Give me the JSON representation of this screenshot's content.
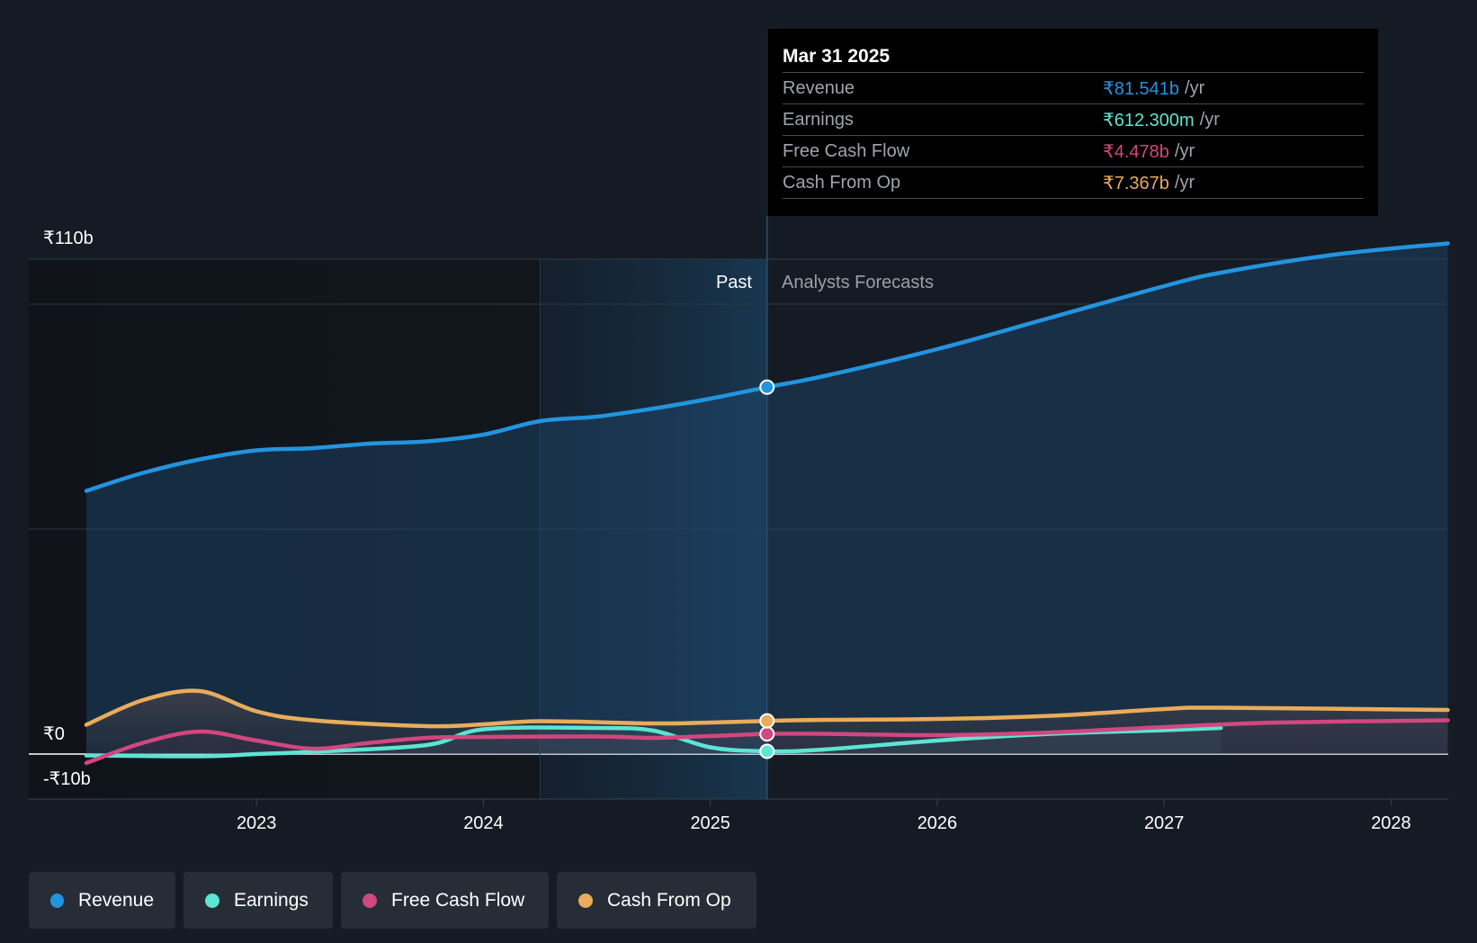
{
  "tooltip": {
    "date": "Mar 31 2025",
    "rows": [
      {
        "label": "Revenue",
        "value": "₹81.541b",
        "unit": "/yr",
        "color": "#2394df"
      },
      {
        "label": "Earnings",
        "value": "₹612.300m",
        "unit": "/yr",
        "color": "#5de4d3"
      },
      {
        "label": "Free Cash Flow",
        "value": "₹4.478b",
        "unit": "/yr",
        "color": "#d1477f"
      },
      {
        "label": "Cash From Op",
        "value": "₹7.367b",
        "unit": "/yr",
        "color": "#e8ac5b"
      }
    ]
  },
  "legend": [
    {
      "label": "Revenue",
      "color": "#2394df"
    },
    {
      "label": "Earnings",
      "color": "#5de4d3"
    },
    {
      "label": "Free Cash Flow",
      "color": "#d1477f"
    },
    {
      "label": "Cash From Op",
      "color": "#e8ac5b"
    }
  ],
  "chart_data": {
    "type": "line",
    "y_label_top": "₹110b",
    "y_label_zero": "₹0",
    "y_label_bottom": "-₹10b",
    "ylim": [
      -10,
      110
    ],
    "xlim": [
      2022.25,
      2028.25
    ],
    "x_ticks": [
      "2023",
      "2024",
      "2025",
      "2026",
      "2027",
      "2028"
    ],
    "x_tick_values": [
      2023,
      2024,
      2025,
      2026,
      2027,
      2028
    ],
    "past_label": "Past",
    "forecast_label": "Analysts Forecasts",
    "divider_x": 2025.25,
    "highlight_start_x": 2024.25,
    "series": [
      {
        "name": "Revenue",
        "color": "#2394df",
        "points": [
          [
            2022.25,
            58.5
          ],
          [
            2022.5,
            62.5
          ],
          [
            2022.75,
            65.5
          ],
          [
            2023,
            67.5
          ],
          [
            2023.25,
            68
          ],
          [
            2023.5,
            69
          ],
          [
            2023.75,
            69.5
          ],
          [
            2024,
            71
          ],
          [
            2024.25,
            74
          ],
          [
            2024.5,
            75
          ],
          [
            2024.75,
            76.8
          ],
          [
            2025,
            79
          ],
          [
            2025.25,
            81.541
          ],
          [
            2025.5,
            84
          ],
          [
            2026,
            90
          ],
          [
            2026.5,
            97
          ],
          [
            2027,
            104
          ],
          [
            2027.25,
            107
          ],
          [
            2027.75,
            111
          ],
          [
            2028.25,
            113.5
          ]
        ]
      },
      {
        "name": "Earnings",
        "color": "#5de4d3",
        "points": [
          [
            2022.25,
            -0.3
          ],
          [
            2022.75,
            -0.5
          ],
          [
            2023,
            0
          ],
          [
            2023.25,
            0.5
          ],
          [
            2023.75,
            2
          ],
          [
            2024,
            5.5
          ],
          [
            2024.5,
            5.8
          ],
          [
            2024.75,
            5.2
          ],
          [
            2025,
            1.5
          ],
          [
            2025.25,
            0.6123
          ],
          [
            2025.5,
            1
          ],
          [
            2026,
            3
          ],
          [
            2026.5,
            4.5
          ],
          [
            2027,
            5.3
          ],
          [
            2027.25,
            5.8
          ]
        ]
      },
      {
        "name": "Free Cash Flow",
        "color": "#d1477f",
        "points": [
          [
            2022.25,
            -2
          ],
          [
            2022.5,
            2.5
          ],
          [
            2022.75,
            5
          ],
          [
            2023,
            3
          ],
          [
            2023.25,
            1.2
          ],
          [
            2023.5,
            2.5
          ],
          [
            2023.75,
            3.6
          ],
          [
            2024,
            3.8
          ],
          [
            2024.5,
            3.9
          ],
          [
            2024.75,
            3.6
          ],
          [
            2025,
            4
          ],
          [
            2025.25,
            4.478
          ],
          [
            2025.5,
            4.5
          ],
          [
            2026,
            4.2
          ],
          [
            2026.5,
            4.8
          ],
          [
            2027,
            6
          ],
          [
            2027.5,
            7
          ],
          [
            2028.25,
            7.5
          ]
        ]
      },
      {
        "name": "Cash From Op",
        "color": "#e8ac5b",
        "points": [
          [
            2022.25,
            6.5
          ],
          [
            2022.5,
            12
          ],
          [
            2022.75,
            14
          ],
          [
            2023,
            9.5
          ],
          [
            2023.25,
            7.5
          ],
          [
            2023.75,
            6.2
          ],
          [
            2024,
            6.6
          ],
          [
            2024.25,
            7.3
          ],
          [
            2024.75,
            6.8
          ],
          [
            2025,
            7
          ],
          [
            2025.25,
            7.367
          ],
          [
            2025.5,
            7.6
          ],
          [
            2026,
            7.8
          ],
          [
            2026.5,
            8.5
          ],
          [
            2027,
            10
          ],
          [
            2027.25,
            10.3
          ],
          [
            2028.25,
            9.8
          ]
        ]
      }
    ]
  }
}
